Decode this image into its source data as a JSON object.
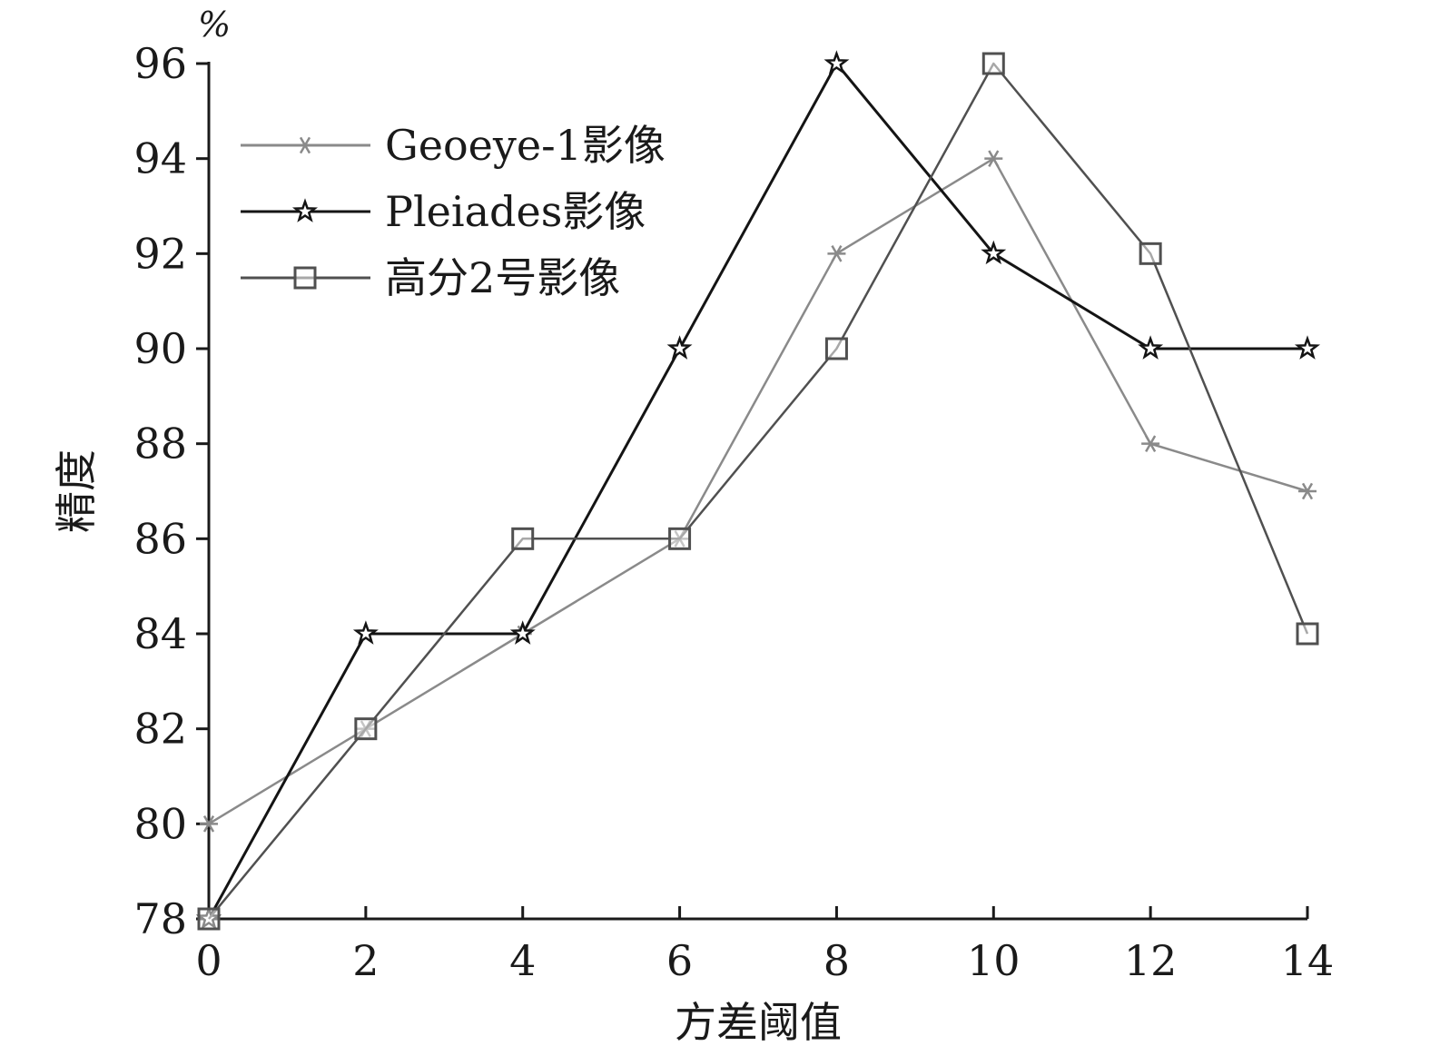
{
  "chart_data": {
    "type": "line",
    "title": "",
    "xlabel": "方差阈值",
    "ylabel": "精度",
    "y_unit": "%",
    "xlim": [
      0,
      14
    ],
    "ylim": [
      78,
      96
    ],
    "x_ticks": [
      0,
      2,
      4,
      6,
      8,
      10,
      12,
      14
    ],
    "y_ticks": [
      78,
      80,
      82,
      84,
      86,
      88,
      90,
      92,
      94,
      96
    ],
    "x": [
      0,
      2,
      4,
      6,
      8,
      10,
      12,
      14
    ],
    "grid": false,
    "legend_position": "top-left",
    "series": [
      {
        "name": "Geoeye-1影像",
        "values": [
          80,
          82,
          84,
          86,
          92,
          94,
          88,
          87
        ],
        "marker": "asterisk",
        "color": "#8a8a8a"
      },
      {
        "name": "Pleiades影像",
        "values": [
          78,
          84,
          84,
          90,
          96,
          92,
          90,
          90
        ],
        "marker": "star",
        "color": "#141414"
      },
      {
        "name": "高分2号影像",
        "values": [
          78,
          82,
          86,
          86,
          90,
          96,
          92,
          84
        ],
        "marker": "square",
        "color": "#505050"
      }
    ]
  }
}
